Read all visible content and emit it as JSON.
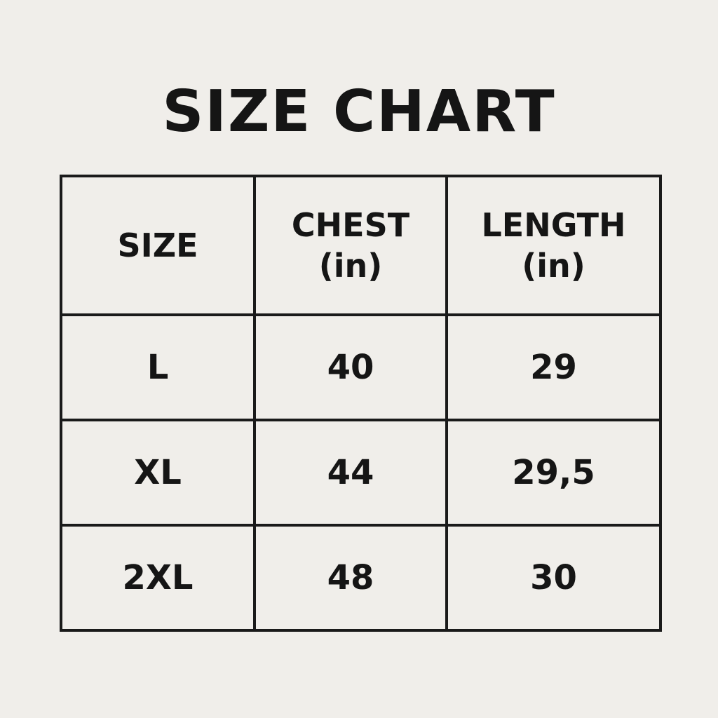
{
  "header": {
    "title": "SIZE CHART"
  },
  "table": {
    "columns": [
      [
        "SIZE"
      ],
      [
        "CHEST",
        "(in)"
      ],
      [
        "LENGTH",
        "(in)"
      ]
    ],
    "rows": [
      [
        "L",
        40,
        29
      ],
      [
        "XL",
        44,
        "29,5"
      ],
      [
        "2XL",
        48,
        30
      ]
    ]
  }
}
